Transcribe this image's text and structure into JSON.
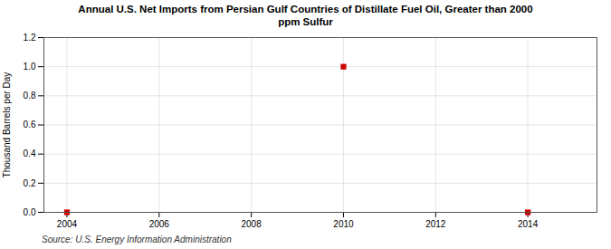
{
  "chart_data": {
    "type": "scatter",
    "title": "Annual U.S. Net Imports from Persian Gulf Countries of Distillate Fuel Oil, Greater than 2000\nppm Sulfur",
    "ylabel": "Thousand Barrels per Day",
    "source": "Source: U.S. Energy Information Administration",
    "x": [
      2004,
      2010,
      2014
    ],
    "values": [
      0.0,
      1.0,
      0.0
    ],
    "color": "#cc0000",
    "marker": "square",
    "xlim": [
      2003.5,
      2015.5
    ],
    "xticks": [
      2004,
      2006,
      2008,
      2010,
      2012,
      2014
    ],
    "ylim": [
      0.0,
      1.2
    ],
    "yticks": [
      {
        "value": 0.0,
        "label": "0.0"
      },
      0.2,
      0.4,
      0.6,
      0.8,
      {
        "value": 1.0,
        "label": "1.0"
      },
      1.2
    ],
    "grid": true
  }
}
